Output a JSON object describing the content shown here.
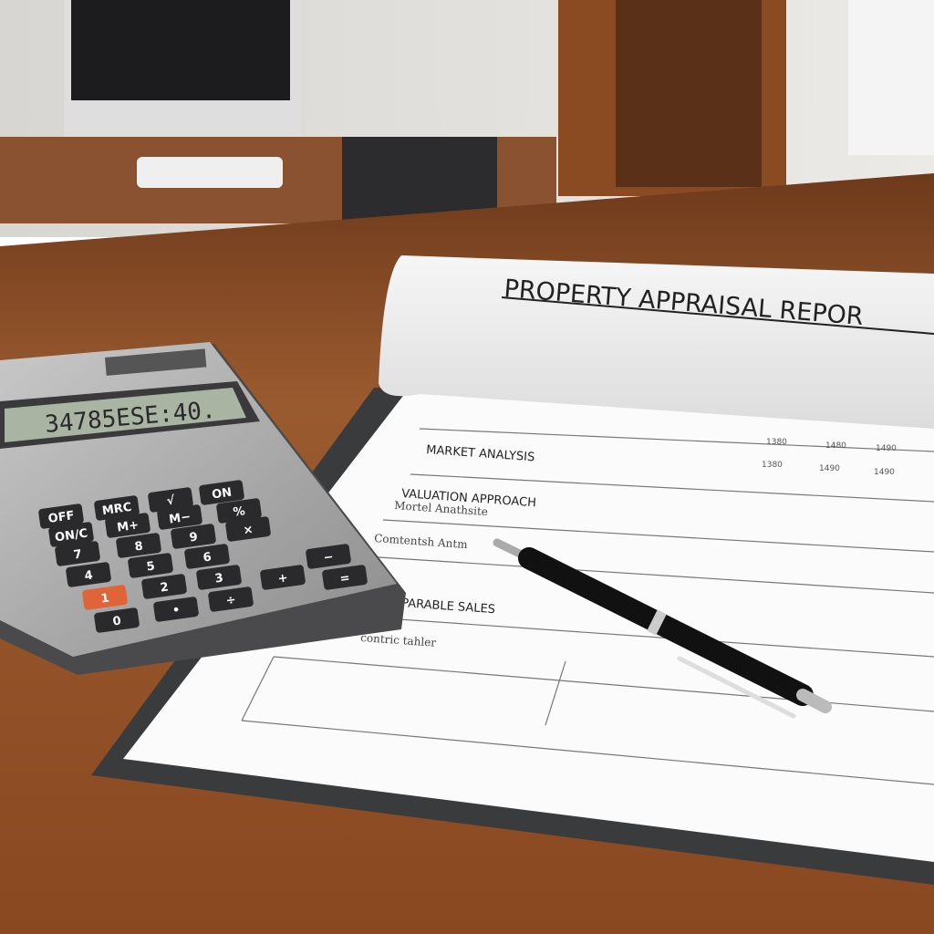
{
  "document": {
    "title": "PROPERTY APPRAISAL REPOR",
    "headings": [
      "MARKET ANALYSIS",
      "VALUATION APPROACH",
      "PARABLE SALES"
    ],
    "sublabels": [
      "Mortel Anathsite",
      "Comtentsh Antm",
      "contric tahler"
    ],
    "table_header": [
      "1380",
      "1480",
      "1490",
      "1380",
      "1490",
      "1490"
    ]
  },
  "calculator": {
    "display": "34785ESE:40.",
    "keys": [
      "OFF",
      "MRC",
      "√",
      "ON",
      "ON/C",
      "M+",
      "M−",
      "%",
      "7",
      "8",
      "9",
      "×",
      "4",
      "5",
      "6",
      "−",
      "1",
      "2",
      "3",
      "+",
      "0",
      "•",
      "÷",
      "="
    ]
  }
}
